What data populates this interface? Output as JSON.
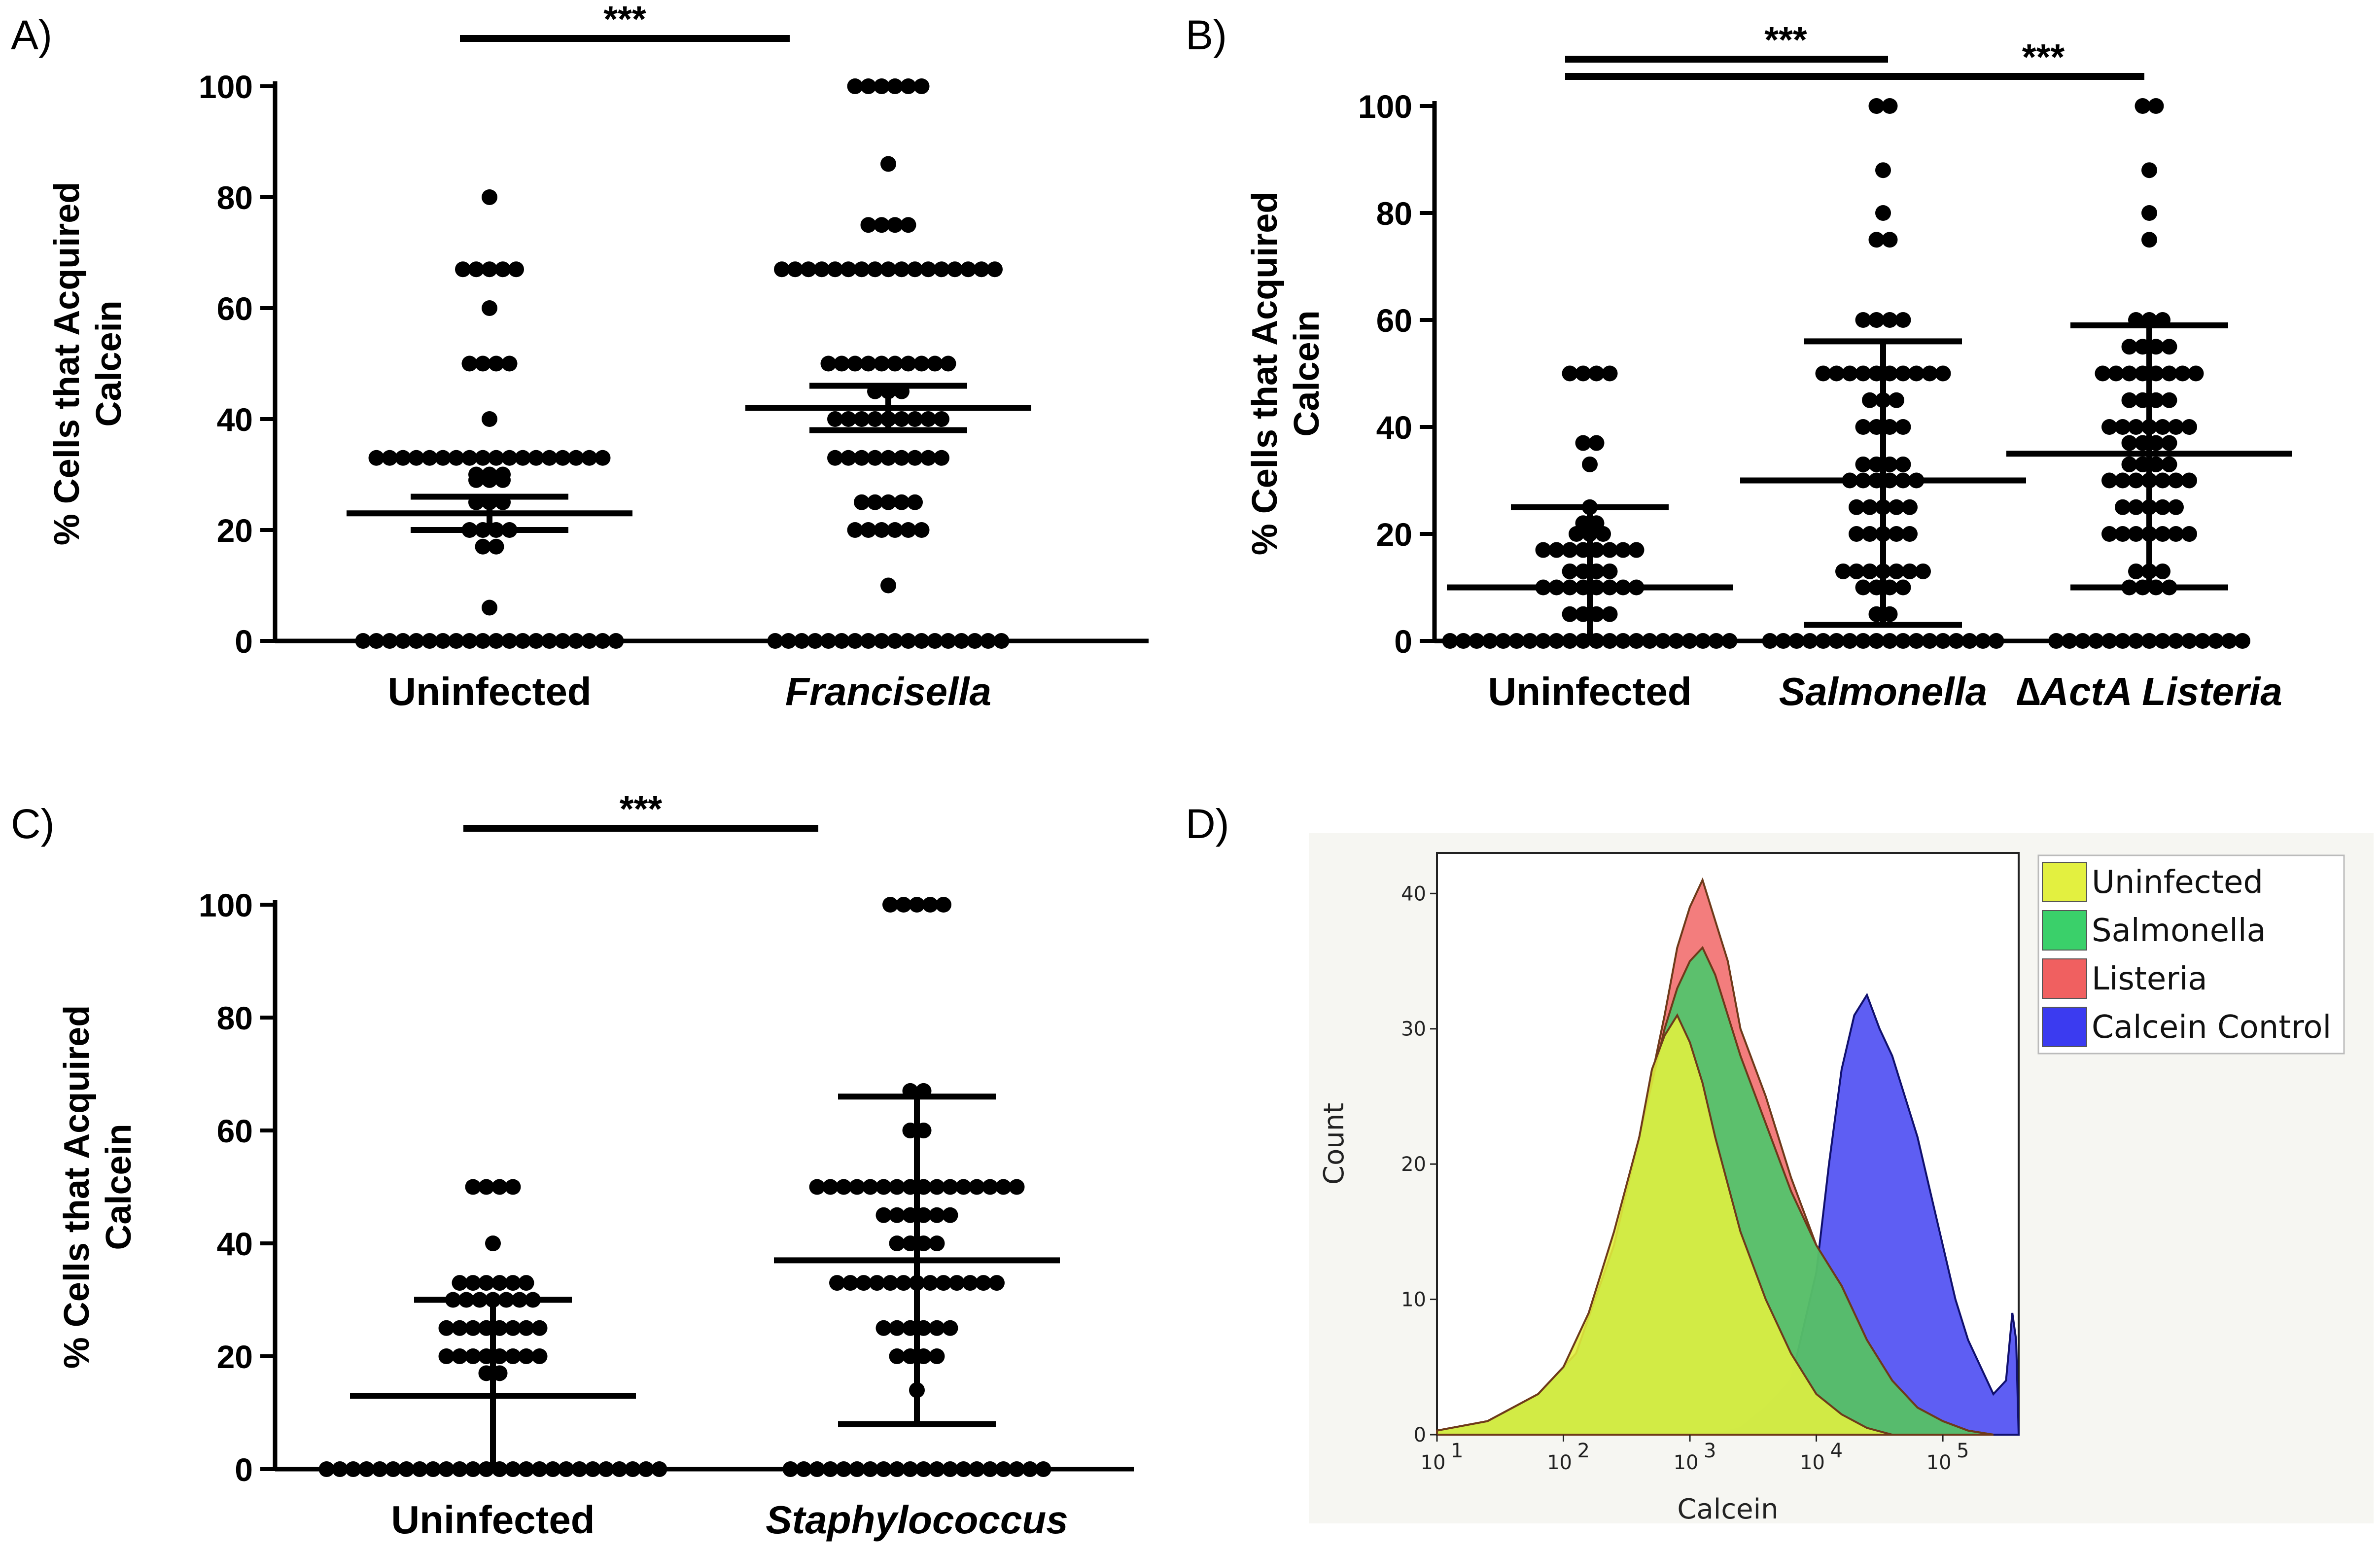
{
  "chart_data": [
    {
      "panel": "A)",
      "type": "scatter",
      "ylabel_line1": "% Cells that Acquired",
      "ylabel_line2": "Calcein",
      "ylim": [
        0,
        100
      ],
      "yticks": [
        "0",
        "20",
        "40",
        "60",
        "80",
        "100"
      ],
      "categories": [
        "Uninfected",
        "Francisella"
      ],
      "italic": [
        false,
        true
      ],
      "significance": [
        {
          "from": 0,
          "to": 1,
          "label": "***"
        }
      ],
      "summary": [
        {
          "center": 23,
          "low": 20,
          "high": 26
        },
        {
          "center": 42,
          "low": 38,
          "high": 46
        }
      ],
      "points": [
        [
          0,
          0,
          0,
          0,
          0,
          0,
          0,
          0,
          0,
          0,
          0,
          0,
          0,
          0,
          0,
          0,
          0,
          0,
          0,
          0,
          6,
          17,
          17,
          20,
          20,
          20,
          20,
          25,
          25,
          25,
          29,
          29,
          29,
          30,
          30,
          30,
          33,
          33,
          33,
          33,
          33,
          33,
          33,
          33,
          33,
          33,
          33,
          33,
          33,
          33,
          33,
          33,
          33,
          33,
          40,
          50,
          50,
          50,
          50,
          60,
          67,
          67,
          67,
          67,
          67,
          80
        ],
        [
          0,
          0,
          0,
          0,
          0,
          0,
          0,
          0,
          0,
          0,
          0,
          0,
          0,
          0,
          0,
          0,
          0,
          0,
          10,
          20,
          20,
          20,
          20,
          20,
          20,
          25,
          25,
          25,
          25,
          25,
          33,
          33,
          33,
          33,
          33,
          33,
          33,
          33,
          33,
          40,
          40,
          40,
          40,
          40,
          40,
          40,
          40,
          40,
          45,
          45,
          45,
          50,
          50,
          50,
          50,
          50,
          50,
          50,
          50,
          50,
          50,
          67,
          67,
          67,
          67,
          67,
          67,
          67,
          67,
          67,
          67,
          67,
          67,
          67,
          67,
          67,
          67,
          67,
          75,
          75,
          75,
          75,
          86,
          100,
          100,
          100,
          100,
          100,
          100
        ]
      ]
    },
    {
      "panel": "B)",
      "type": "scatter",
      "ylabel_line1": "% Cells that Acquired",
      "ylabel_line2": "Calcein",
      "ylim": [
        0,
        100
      ],
      "yticks": [
        "0",
        "20",
        "40",
        "60",
        "80",
        "100"
      ],
      "categories": [
        "Uninfected",
        "Salmonella",
        "∆ActA Listeria"
      ],
      "italic": [
        false,
        true,
        true
      ],
      "significance": [
        {
          "from": 0,
          "to": 1,
          "label": "***"
        },
        {
          "from": 0,
          "to": 2,
          "label": "***"
        }
      ],
      "summary": [
        {
          "center": 10,
          "low": 0,
          "high": 25
        },
        {
          "center": 30,
          "low": 3,
          "high": 56
        },
        {
          "center": 35,
          "low": 10,
          "high": 59
        }
      ],
      "points": [
        [
          0,
          0,
          0,
          0,
          0,
          0,
          0,
          0,
          0,
          0,
          0,
          0,
          0,
          0,
          0,
          0,
          0,
          0,
          0,
          0,
          0,
          0,
          5,
          5,
          5,
          5,
          10,
          10,
          10,
          10,
          10,
          10,
          10,
          10,
          13,
          13,
          13,
          13,
          17,
          17,
          17,
          17,
          17,
          17,
          17,
          17,
          20,
          20,
          20,
          22,
          22,
          25,
          33,
          37,
          37,
          50,
          50,
          50,
          50
        ],
        [
          0,
          0,
          0,
          0,
          0,
          0,
          0,
          0,
          0,
          0,
          0,
          0,
          0,
          0,
          0,
          0,
          0,
          0,
          5,
          5,
          10,
          10,
          10,
          10,
          13,
          13,
          13,
          13,
          13,
          13,
          13,
          20,
          20,
          20,
          20,
          20,
          25,
          25,
          25,
          25,
          25,
          30,
          30,
          30,
          30,
          30,
          30,
          33,
          33,
          33,
          33,
          40,
          40,
          40,
          40,
          45,
          45,
          45,
          50,
          50,
          50,
          50,
          50,
          50,
          50,
          50,
          50,
          50,
          60,
          60,
          60,
          60,
          75,
          75,
          80,
          88,
          100,
          100
        ],
        [
          0,
          0,
          0,
          0,
          0,
          0,
          0,
          0,
          0,
          0,
          0,
          0,
          0,
          0,
          0,
          10,
          10,
          10,
          10,
          13,
          13,
          13,
          20,
          20,
          20,
          20,
          20,
          20,
          20,
          25,
          25,
          25,
          25,
          25,
          30,
          30,
          30,
          30,
          30,
          30,
          30,
          33,
          33,
          33,
          33,
          37,
          37,
          37,
          37,
          40,
          40,
          40,
          40,
          40,
          40,
          40,
          45,
          45,
          45,
          45,
          50,
          50,
          50,
          50,
          50,
          50,
          50,
          50,
          55,
          55,
          55,
          55,
          60,
          60,
          60,
          75,
          80,
          88,
          100,
          100
        ]
      ]
    },
    {
      "panel": "C)",
      "type": "scatter",
      "ylabel_line1": "% Cells that Acquired",
      "ylabel_line2": "Calcein",
      "ylim": [
        0,
        100
      ],
      "yticks": [
        "0",
        "20",
        "40",
        "60",
        "80",
        "100"
      ],
      "categories": [
        "Uninfected",
        "Staphylococcus"
      ],
      "italic": [
        false,
        true
      ],
      "significance": [
        {
          "from": 0,
          "to": 1,
          "label": "***"
        }
      ],
      "summary": [
        {
          "center": 13,
          "low": 0,
          "high": 30
        },
        {
          "center": 37,
          "low": 8,
          "high": 66
        }
      ],
      "points": [
        [
          0,
          0,
          0,
          0,
          0,
          0,
          0,
          0,
          0,
          0,
          0,
          0,
          0,
          0,
          0,
          0,
          0,
          0,
          0,
          0,
          0,
          0,
          0,
          0,
          0,
          0,
          17,
          17,
          20,
          20,
          20,
          20,
          20,
          20,
          20,
          20,
          25,
          25,
          25,
          25,
          25,
          25,
          25,
          25,
          30,
          30,
          30,
          30,
          30,
          30,
          30,
          33,
          33,
          33,
          33,
          33,
          33,
          40,
          50,
          50,
          50,
          50
        ],
        [
          0,
          0,
          0,
          0,
          0,
          0,
          0,
          0,
          0,
          0,
          0,
          0,
          0,
          0,
          0,
          0,
          0,
          0,
          0,
          0,
          14,
          20,
          20,
          20,
          20,
          25,
          25,
          25,
          25,
          25,
          25,
          33,
          33,
          33,
          33,
          33,
          33,
          33,
          33,
          33,
          33,
          33,
          33,
          33,
          40,
          40,
          40,
          40,
          45,
          45,
          45,
          45,
          45,
          45,
          50,
          50,
          50,
          50,
          50,
          50,
          50,
          50,
          50,
          50,
          50,
          50,
          50,
          50,
          50,
          50,
          60,
          60,
          67,
          67,
          100,
          100,
          100,
          100,
          100
        ]
      ]
    },
    {
      "panel": "D)",
      "type": "area",
      "xlabel": "Calcein",
      "ylabel": "Count",
      "ylim": [
        0,
        43
      ],
      "xlim_log10": [
        1,
        5.6
      ],
      "xticks": [
        {
          "base": "10",
          "exp": "1"
        },
        {
          "base": "10",
          "exp": "2"
        },
        {
          "base": "10",
          "exp": "3"
        },
        {
          "base": "10",
          "exp": "4"
        },
        {
          "base": "10",
          "exp": "5"
        }
      ],
      "yticks": [
        "0",
        "10",
        "20",
        "30",
        "40"
      ],
      "series": [
        {
          "name": "Calcein Control",
          "color": "#3b3bf0",
          "x": [
            3.2,
            3.4,
            3.6,
            3.8,
            4.0,
            4.1,
            4.2,
            4.3,
            4.4,
            4.5,
            4.6,
            4.7,
            4.8,
            4.9,
            5.0,
            5.1,
            5.2,
            5.3,
            5.4,
            5.5,
            5.55,
            5.58,
            5.6
          ],
          "y": [
            0,
            0.5,
            2,
            4,
            12,
            20,
            27,
            31,
            32.5,
            30,
            28,
            25,
            22,
            18,
            14,
            10,
            7,
            5,
            3,
            4,
            9,
            7,
            0
          ]
        },
        {
          "name": "Listeria",
          "color": "#f06060",
          "x": [
            1.0,
            1.4,
            1.8,
            2.1,
            2.4,
            2.6,
            2.8,
            2.9,
            3.0,
            3.1,
            3.2,
            3.3,
            3.4,
            3.6,
            3.8,
            4.0,
            4.2,
            4.4,
            4.6,
            4.8,
            5.0,
            5.2,
            5.4
          ],
          "y": [
            0.3,
            1,
            3,
            6,
            14,
            22,
            31,
            36,
            39,
            41,
            38,
            35,
            30,
            25,
            19,
            14,
            11,
            7,
            4,
            2,
            1,
            0.3,
            0
          ]
        },
        {
          "name": "Salmonella",
          "color": "#3ad06a",
          "x": [
            1.0,
            1.4,
            1.8,
            2.1,
            2.4,
            2.6,
            2.8,
            2.9,
            3.0,
            3.1,
            3.2,
            3.3,
            3.4,
            3.6,
            3.8,
            4.0,
            4.2,
            4.4,
            4.6,
            4.8,
            5.0,
            5.2,
            5.4
          ],
          "y": [
            0.3,
            1,
            3,
            6,
            14,
            22,
            30,
            33,
            35,
            36,
            34,
            31,
            28,
            23,
            18,
            14,
            11,
            7,
            4,
            2,
            1,
            0.3,
            0
          ]
        },
        {
          "name": "Uninfected",
          "color": "#e3f040",
          "x": [
            1.0,
            1.4,
            1.8,
            2.0,
            2.2,
            2.4,
            2.6,
            2.7,
            2.8,
            2.9,
            3.0,
            3.1,
            3.2,
            3.4,
            3.6,
            3.8,
            4.0,
            4.2,
            4.4,
            4.6
          ],
          "y": [
            0.3,
            1,
            3,
            5,
            9,
            15,
            22,
            27,
            29.5,
            31,
            29,
            26,
            22,
            15,
            10,
            6,
            3,
            1.5,
            0.5,
            0
          ]
        }
      ]
    }
  ]
}
